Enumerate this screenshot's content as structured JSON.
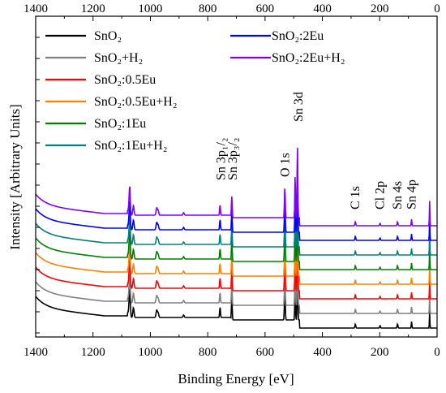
{
  "chart_data": {
    "type": "line",
    "xlabel": "Binding Energy [eV]",
    "ylabel": "Intensity [Arbitrary Units]",
    "xlim": [
      1400,
      0
    ],
    "x_reversed": true,
    "x_ticks": [
      1400,
      1200,
      1000,
      800,
      600,
      400,
      200,
      0
    ],
    "y_tick_labels_shown": false,
    "grid": false,
    "legend_position": "top-left",
    "series": [
      {
        "name": "SnO₂",
        "color": "#000000",
        "offset": 0
      },
      {
        "name": "SnO₂+H₂",
        "color": "#808080",
        "offset": 1
      },
      {
        "name": "SnO₂:0.5Eu",
        "color": "#ff0000",
        "offset": 2
      },
      {
        "name": "SnO₂:0.5Eu+H₂",
        "color": "#ff8000",
        "offset": 3
      },
      {
        "name": "SnO₂:1Eu",
        "color": "#008000",
        "offset": 4
      },
      {
        "name": "SnO₂:1Eu+H₂",
        "color": "#008080",
        "offset": 5
      },
      {
        "name": "SnO₂:2Eu",
        "color": "#0000ff",
        "offset": 6
      },
      {
        "name": "SnO₂:2Eu+H₂",
        "color": "#8000ff",
        "offset": 7
      }
    ],
    "peaks": [
      {
        "label": "Sn 3d",
        "energy": 487
      },
      {
        "label": "O 1s",
        "energy": 531
      },
      {
        "label": "Sn 3p₃/₂",
        "energy": 716
      },
      {
        "label": "Sn 3p₁/₂",
        "energy": 757
      },
      {
        "label": "C 1s",
        "energy": 285
      },
      {
        "label": "Cl 2p",
        "energy": 199
      },
      {
        "label": "Sn 4s",
        "energy": 138
      },
      {
        "label": "Sn 4p",
        "energy": 89
      }
    ]
  }
}
